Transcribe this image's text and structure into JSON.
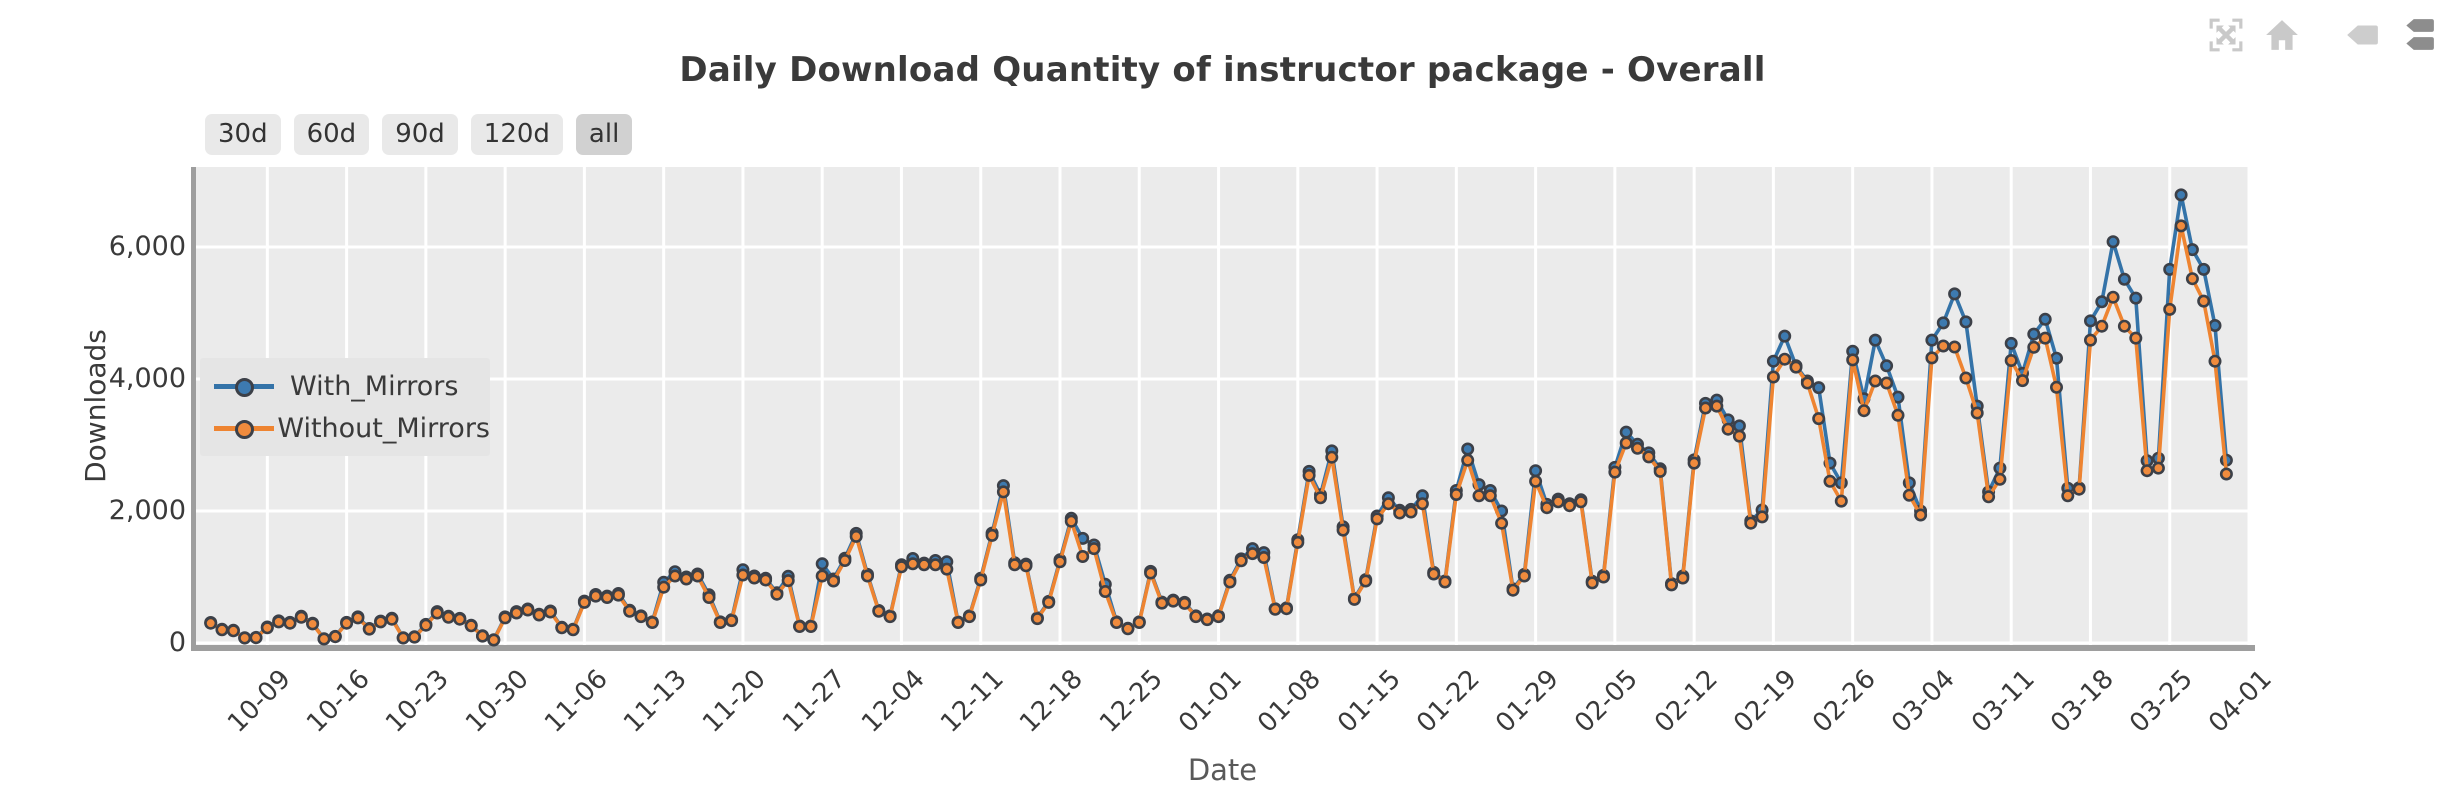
{
  "title": "Daily Download Quantity of instructor package - Overall",
  "toolbar": {
    "icons": [
      {
        "name": "fullscreen-icon",
        "color": "#c9c9c9"
      },
      {
        "name": "home-icon",
        "color": "#c9c9c9"
      },
      {
        "name": "tooltip-single-icon",
        "color": "#cdcdcd"
      },
      {
        "name": "tooltip-multi-icon",
        "color": "#8d8d8d"
      }
    ]
  },
  "range_buttons": [
    {
      "label": "30d",
      "active": false
    },
    {
      "label": "60d",
      "active": false
    },
    {
      "label": "90d",
      "active": false
    },
    {
      "label": "120d",
      "active": false
    },
    {
      "label": "all",
      "active": true
    }
  ],
  "legend": {
    "items": [
      {
        "label": "With_Mirrors",
        "line_color": "#3473a8",
        "marker_color": "#3d7ab0"
      },
      {
        "label": "Without_Mirrors",
        "line_color": "#ee8431",
        "marker_color": "#f08b3d"
      }
    ]
  },
  "y_axis": {
    "label": "Downloads",
    "tick_labels": [
      "0",
      "2,000",
      "4,000",
      "6,000"
    ],
    "tick_values": [
      0,
      2000,
      4000,
      6000
    ]
  },
  "x_axis": {
    "label": "Date",
    "tick_labels": [
      "10-09",
      "10-16",
      "10-23",
      "10-30",
      "11-06",
      "11-13",
      "11-20",
      "11-27",
      "12-04",
      "12-11",
      "12-18",
      "12-25",
      "01-01",
      "01-08",
      "01-15",
      "01-22",
      "01-29",
      "02-05",
      "02-12",
      "02-19",
      "02-26",
      "03-04",
      "03-11",
      "03-18",
      "03-25",
      "04-01"
    ],
    "tick_indices": [
      5,
      12,
      19,
      26,
      33,
      40,
      47,
      54,
      61,
      68,
      75,
      82,
      89,
      96,
      103,
      110,
      117,
      124,
      131,
      138,
      145,
      152,
      159,
      166,
      173,
      180
    ]
  },
  "colors": {
    "plot_background": "#ebebeb",
    "grid": "#ffffff",
    "axis_line": "#9e9e9e",
    "marker_edge": "#3c4048",
    "text": "#3a3a3a"
  },
  "chart_data": {
    "type": "line",
    "title": "Daily Download Quantity of instructor package - Overall",
    "xlabel": "Date",
    "ylabel": "Downloads",
    "grid": true,
    "legend_position": "center-left",
    "ylim": [
      0,
      7210
    ],
    "yticks": [
      0,
      2000,
      4000,
      6000
    ],
    "x_tick_labels": [
      "10-09",
      "10-16",
      "10-23",
      "10-30",
      "11-06",
      "11-13",
      "11-20",
      "11-27",
      "12-04",
      "12-11",
      "12-18",
      "12-25",
      "01-01",
      "01-08",
      "01-15",
      "01-22",
      "01-29",
      "02-05",
      "02-12",
      "02-19",
      "02-26",
      "03-04",
      "03-11",
      "03-18",
      "03-25",
      "04-01"
    ],
    "x_tick_indices": [
      5,
      12,
      19,
      26,
      33,
      40,
      47,
      54,
      61,
      68,
      75,
      82,
      89,
      96,
      103,
      110,
      117,
      124,
      131,
      138,
      145,
      152,
      159,
      166,
      173,
      180
    ],
    "x": [
      "10-04",
      "10-05",
      "10-06",
      "10-07",
      "10-08",
      "10-09",
      "10-10",
      "10-11",
      "10-12",
      "10-13",
      "10-14",
      "10-15",
      "10-16",
      "10-17",
      "10-18",
      "10-19",
      "10-20",
      "10-21",
      "10-22",
      "10-23",
      "10-24",
      "10-25",
      "10-26",
      "10-27",
      "10-28",
      "10-29",
      "10-30",
      "10-31",
      "11-01",
      "11-02",
      "11-03",
      "11-04",
      "11-05",
      "11-06",
      "11-07",
      "11-08",
      "11-09",
      "11-10",
      "11-11",
      "11-12",
      "11-13",
      "11-14",
      "11-15",
      "11-16",
      "11-17",
      "11-18",
      "11-19",
      "11-20",
      "11-21",
      "11-22",
      "11-23",
      "11-24",
      "11-25",
      "11-26",
      "11-27",
      "11-28",
      "11-29",
      "11-30",
      "12-01",
      "12-02",
      "12-03",
      "12-04",
      "12-05",
      "12-06",
      "12-07",
      "12-08",
      "12-09",
      "12-10",
      "12-11",
      "12-12",
      "12-13",
      "12-14",
      "12-15",
      "12-16",
      "12-17",
      "12-18",
      "12-19",
      "12-20",
      "12-21",
      "12-22",
      "12-23",
      "12-24",
      "12-25",
      "12-26",
      "12-27",
      "12-28",
      "12-29",
      "12-30",
      "12-31",
      "01-01",
      "01-02",
      "01-03",
      "01-04",
      "01-05",
      "01-06",
      "01-07",
      "01-08",
      "01-09",
      "01-10",
      "01-11",
      "01-12",
      "01-13",
      "01-14",
      "01-15",
      "01-16",
      "01-17",
      "01-18",
      "01-19",
      "01-20",
      "01-21",
      "01-22",
      "01-23",
      "01-24",
      "01-25",
      "01-26",
      "01-27",
      "01-28",
      "01-29",
      "01-30",
      "01-31",
      "02-01",
      "02-02",
      "02-03",
      "02-04",
      "02-05",
      "02-06",
      "02-07",
      "02-08",
      "02-09",
      "02-10",
      "02-11",
      "02-12",
      "02-13",
      "02-14",
      "02-15",
      "02-16",
      "02-17",
      "02-18",
      "02-19",
      "02-20",
      "02-21",
      "02-22",
      "02-23",
      "02-24",
      "02-25",
      "02-26",
      "02-27",
      "02-28",
      "02-29",
      "03-01",
      "03-02",
      "03-03",
      "03-04",
      "03-05",
      "03-06",
      "03-07",
      "03-08",
      "03-09",
      "03-10",
      "03-11",
      "03-12",
      "03-13",
      "03-14",
      "03-15",
      "03-16",
      "03-17",
      "03-18",
      "03-19",
      "03-20",
      "03-21",
      "03-22",
      "03-23",
      "03-24",
      "03-25",
      "03-26",
      "03-27",
      "03-28",
      "03-29",
      "03-30"
    ],
    "series": [
      {
        "name": "With_Mirrors",
        "color": "#3473a8",
        "marker_fill": "#3d7ab0",
        "values": [
          310,
          208,
          193,
          80,
          85,
          242,
          335,
          312,
          405,
          300,
          65,
          100,
          312,
          395,
          220,
          332,
          375,
          80,
          95,
          282,
          475,
          405,
          372,
          270,
          110,
          50,
          395,
          475,
          515,
          437,
          485,
          238,
          208,
          635,
          735,
          710,
          750,
          495,
          410,
          320,
          920,
          1080,
          1000,
          1045,
          730,
          320,
          352,
          1110,
          1015,
          980,
          760,
          1010,
          258,
          258,
          1200,
          970,
          1285,
          1660,
          1040,
          492,
          410,
          1185,
          1280,
          1210,
          1250,
          1230,
          318,
          410,
          980,
          1665,
          2385,
          1215,
          1195,
          380,
          630,
          1260,
          1890,
          1585,
          1485,
          890,
          320,
          223,
          320,
          1085,
          620,
          650,
          615,
          410,
          363,
          412,
          950,
          1275,
          1430,
          1370,
          520,
          532,
          1565,
          2600,
          2245,
          2910,
          1760,
          675,
          960,
          1925,
          2200,
          2010,
          2025,
          2230,
          1070,
          940,
          2310,
          2940,
          2400,
          2310,
          2000,
          820,
          1040,
          2610,
          2100,
          2180,
          2110,
          2170,
          935,
          1025,
          2660,
          3195,
          3010,
          2880,
          2640,
          900,
          1015,
          2775,
          3630,
          3680,
          3380,
          3290,
          1850,
          2015,
          4270,
          4650,
          4200,
          3970,
          3870,
          2725,
          2425,
          4420,
          3700,
          4590,
          4200,
          3725,
          2425,
          2000,
          4590,
          4850,
          5290,
          4865,
          3590,
          2290,
          2650,
          4540,
          4085,
          4680,
          4905,
          4315,
          2345,
          2350,
          4880,
          5170,
          6080,
          5510,
          5225,
          2760,
          2800,
          5660,
          6790,
          5960,
          5660,
          4810,
          2770
        ]
      },
      {
        "name": "Without_Mirrors",
        "color": "#ee8431",
        "marker_fill": "#f08b3d",
        "values": [
          300,
          200,
          185,
          75,
          80,
          230,
          320,
          300,
          390,
          290,
          60,
          95,
          300,
          380,
          210,
          320,
          360,
          75,
          90,
          270,
          455,
          390,
          360,
          260,
          105,
          45,
          380,
          455,
          500,
          425,
          470,
          230,
          200,
          615,
          710,
          690,
          725,
          480,
          400,
          310,
          845,
          1015,
          970,
          1015,
          690,
          310,
          340,
          1030,
          985,
          955,
          740,
          945,
          250,
          250,
          1015,
          940,
          1250,
          1615,
          1015,
          480,
          400,
          1155,
          1200,
          1185,
          1185,
          1120,
          310,
          400,
          955,
          1630,
          2290,
          1185,
          1170,
          370,
          615,
          1230,
          1845,
          1310,
          1430,
          780,
          310,
          215,
          310,
          1060,
          605,
          635,
          600,
          400,
          355,
          400,
          925,
          1245,
          1355,
          1295,
          510,
          520,
          1525,
          2540,
          2200,
          2815,
          1710,
          660,
          940,
          1880,
          2110,
          1970,
          1985,
          2110,
          1045,
          925,
          2250,
          2770,
          2230,
          2230,
          1815,
          800,
          1015,
          2450,
          2050,
          2140,
          2080,
          2140,
          910,
          1000,
          2590,
          3030,
          2950,
          2820,
          2600,
          880,
          985,
          2725,
          3560,
          3590,
          3240,
          3135,
          1815,
          1910,
          4030,
          4300,
          4180,
          3940,
          3400,
          2450,
          2150,
          4290,
          3520,
          3970,
          3940,
          3450,
          2240,
          1940,
          4320,
          4500,
          4485,
          4015,
          3485,
          2215,
          2480,
          4280,
          3975,
          4480,
          4620,
          3875,
          2230,
          2330,
          4590,
          4800,
          5240,
          4800,
          4620,
          2610,
          2650,
          5055,
          6320,
          5520,
          5180,
          4270,
          2560
        ]
      }
    ]
  }
}
